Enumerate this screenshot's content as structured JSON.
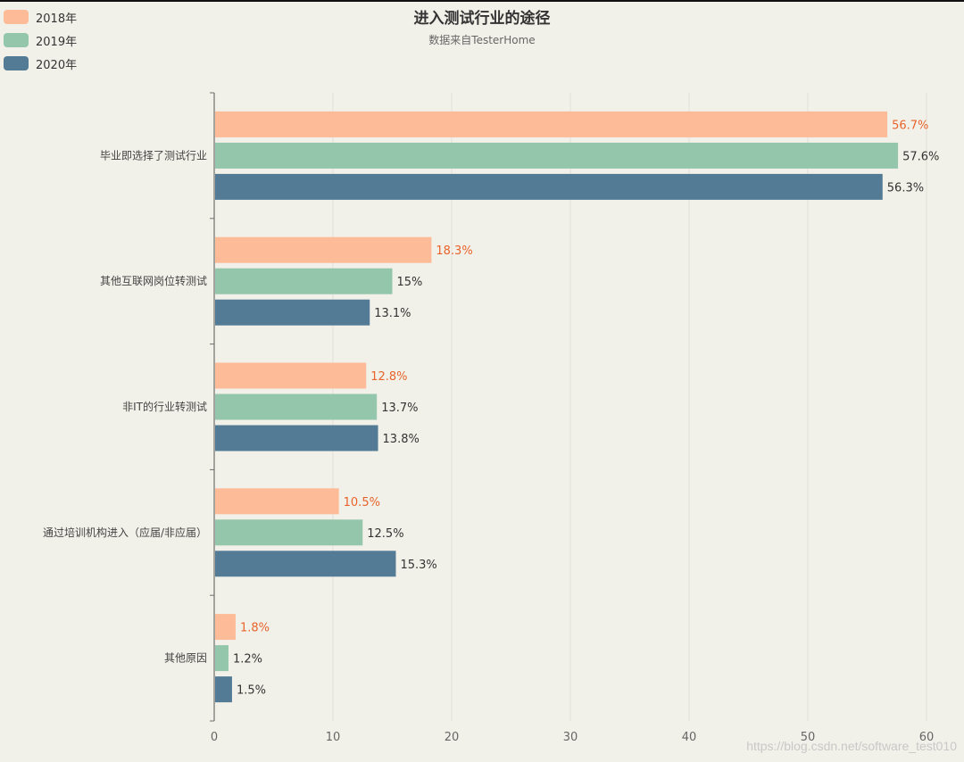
{
  "chart_data": {
    "type": "bar",
    "orientation": "horizontal",
    "title": "进入测试行业的途径",
    "subtitle": "数据来自TesterHome",
    "categories": [
      "毕业即选择了测试行业",
      "其他互联网岗位转测试",
      "非IT的行业转测试",
      "通过培训机构进入（应届/非应届）",
      "其他原因"
    ],
    "series": [
      {
        "name": "2018年",
        "color": "#fdbb97",
        "label_color": "#e8632b",
        "values": [
          56.7,
          18.3,
          12.8,
          10.5,
          1.8
        ]
      },
      {
        "name": "2019年",
        "color": "#93c6aa",
        "label_color": "#333333",
        "values": [
          57.6,
          15,
          13.7,
          12.5,
          1.2
        ]
      },
      {
        "name": "2020年",
        "color": "#537b96",
        "label_color": "#333333",
        "values": [
          56.3,
          13.1,
          13.8,
          15.3,
          1.5
        ]
      }
    ],
    "xlim": [
      0,
      60
    ],
    "xticks": [
      0,
      10,
      20,
      30,
      40,
      50,
      60
    ],
    "value_suffix": "%",
    "grid": true,
    "legend_position": "top-left"
  },
  "watermark": "https://blog.csdn.net/software_test010"
}
